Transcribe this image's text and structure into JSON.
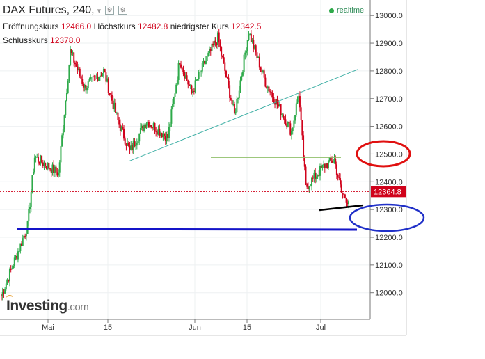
{
  "header": {
    "title": "DAX Futures, 240,",
    "open_label": "Eröffnungskurs",
    "open_value": "12466.0",
    "high_label": "Höchstkurs",
    "high_value": "12482.8",
    "low_label": "niedrigster Kurs",
    "low_value": "12342.5",
    "close_label": "Schlusskurs",
    "close_value": "12378.0",
    "realtime_label": "realtime"
  },
  "logo": {
    "main": "Investing",
    "domain": ".com"
  },
  "price_tag": "12364.8",
  "colors": {
    "up": "#2eaa4a",
    "down": "#d0021b",
    "trend": "#40b0a6",
    "support": "#1414c8",
    "red_circle": "#e01010",
    "blue_circle": "#2030c8",
    "resistance": "#8fbf6a"
  },
  "chart_data": {
    "type": "candlestick",
    "interval": "240",
    "y_ticks": [
      "13000.0",
      "12900.0",
      "12800.0",
      "12700.0",
      "12600.0",
      "12500.0",
      "12400.0",
      "12300.0",
      "12200.0",
      "12100.0",
      "12000.0"
    ],
    "x_ticks": [
      "Mai",
      "15",
      "Jun",
      "15",
      "Jul"
    ],
    "ylim": [
      11920,
      13060
    ],
    "last_price": 12364.8,
    "key_points": [
      {
        "x": "late Apr",
        "y": 11990
      },
      {
        "x": "late Apr",
        "y": 12100
      },
      {
        "x": "26 Apr",
        "y": 12240
      },
      {
        "x": "end Apr",
        "y": 12490
      },
      {
        "x": "5 May",
        "y": 12430
      },
      {
        "x": "8 May",
        "y": 12870
      },
      {
        "x": "12 May",
        "y": 12740
      },
      {
        "x": "16 May",
        "y": 12800
      },
      {
        "x": "20 May",
        "y": 12620
      },
      {
        "x": "22 May",
        "y": 12510
      },
      {
        "x": "26 May",
        "y": 12620
      },
      {
        "x": "31 May",
        "y": 12560
      },
      {
        "x": "2 Jun",
        "y": 12840
      },
      {
        "x": "6 Jun",
        "y": 12720
      },
      {
        "x": "9 Jun",
        "y": 12820
      },
      {
        "x": "12 Jun",
        "y": 12920
      },
      {
        "x": "15 Jun",
        "y": 12640
      },
      {
        "x": "19 Jun",
        "y": 12940
      },
      {
        "x": "21 Jun",
        "y": 12760
      },
      {
        "x": "27 Jun",
        "y": 12680
      },
      {
        "x": "29 Jun",
        "y": 12580
      },
      {
        "x": "30 Jun",
        "y": 12720
      },
      {
        "x": "1 Jul",
        "y": 12380
      },
      {
        "x": "4 Jul",
        "y": 12460
      },
      {
        "x": "6 Jul",
        "y": 12480
      },
      {
        "x": "7 Jul",
        "y": 12360
      },
      {
        "x": "8 Jul",
        "y": 12330
      }
    ],
    "annotations": {
      "support_line": 12230,
      "resistance_line": 12490,
      "rising_trendline": [
        [
          12490
        ],
        [
          12790
        ]
      ]
    }
  }
}
